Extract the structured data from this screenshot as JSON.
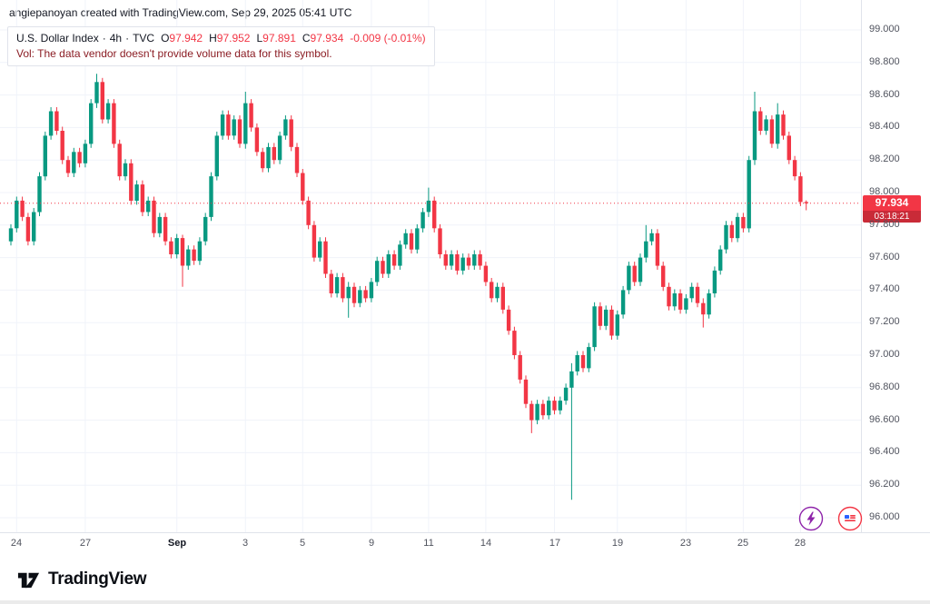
{
  "header": {
    "attribution": "angiepanoyan created with TradingView.com, Sep 29, 2025 05:41 UTC"
  },
  "legend": {
    "symbol_title": "U.S. Dollar Index",
    "separator": "·",
    "interval": "4h",
    "exchange": "TVC",
    "ohlc": {
      "o_label": "O",
      "o": "97.942",
      "h_label": "H",
      "h": "97.952",
      "l_label": "L",
      "l": "97.891",
      "c_label": "C",
      "c": "97.934",
      "change": "-0.009 (-0.01%)"
    },
    "vol_label": "Vol:",
    "vol_message": "The data vendor doesn't provide volume data for this symbol."
  },
  "price_badge": {
    "price": "97.934",
    "countdown": "03:18:21"
  },
  "footer": {
    "logo_text": "TradingView"
  },
  "chart_data": {
    "type": "candlestick",
    "title": "U.S. Dollar Index",
    "interval": "4h",
    "exchange": "TVC",
    "up_color": "#089981",
    "down_color": "#f23645",
    "grid_color": "#f0f3fa",
    "price_range": [
      96.0,
      99.0
    ],
    "y_ticks": [
      "99.000",
      "98.800",
      "98.600",
      "98.400",
      "98.200",
      "98.000",
      "97.800",
      "97.600",
      "97.400",
      "97.200",
      "97.000",
      "96.800",
      "96.600",
      "96.400",
      "96.200",
      "96.000"
    ],
    "time_labels": [
      {
        "text": "24",
        "index": 1
      },
      {
        "text": "27",
        "index": 13
      },
      {
        "text": "Sep",
        "index": 29,
        "major": true
      },
      {
        "text": "3",
        "index": 41
      },
      {
        "text": "5",
        "index": 51
      },
      {
        "text": "9",
        "index": 63
      },
      {
        "text": "11",
        "index": 73
      },
      {
        "text": "14",
        "index": 83
      },
      {
        "text": "17",
        "index": 95
      },
      {
        "text": "19",
        "index": 106
      },
      {
        "text": "23",
        "index": 118
      },
      {
        "text": "25",
        "index": 128
      },
      {
        "text": "28",
        "index": 138
      }
    ],
    "first_open": 97.7,
    "closes": [
      97.78,
      97.95,
      97.85,
      97.7,
      97.88,
      98.1,
      98.35,
      98.5,
      98.38,
      98.2,
      98.12,
      98.25,
      98.18,
      98.3,
      98.55,
      98.68,
      98.45,
      98.55,
      98.3,
      98.1,
      98.18,
      97.95,
      98.05,
      97.88,
      97.95,
      97.75,
      97.85,
      97.7,
      97.62,
      97.72,
      97.55,
      97.65,
      97.58,
      97.7,
      97.85,
      98.1,
      98.35,
      98.48,
      98.35,
      98.45,
      98.3,
      98.55,
      98.4,
      98.25,
      98.15,
      98.28,
      98.2,
      98.35,
      98.45,
      98.28,
      98.12,
      97.95,
      97.8,
      97.6,
      97.7,
      97.5,
      97.38,
      97.48,
      97.35,
      97.42,
      97.32,
      97.4,
      97.35,
      97.45,
      97.58,
      97.5,
      97.62,
      97.55,
      97.68,
      97.75,
      97.65,
      97.78,
      97.88,
      97.95,
      97.78,
      97.62,
      97.55,
      97.62,
      97.52,
      97.6,
      97.55,
      97.62,
      97.55,
      97.45,
      97.35,
      97.42,
      97.28,
      97.15,
      97.0,
      96.85,
      96.7,
      96.6,
      96.7,
      96.63,
      96.72,
      96.66,
      96.72,
      96.8,
      96.9,
      97.0,
      96.92,
      97.05,
      97.3,
      97.18,
      97.28,
      97.12,
      97.25,
      97.4,
      97.55,
      97.45,
      97.6,
      97.7,
      97.75,
      97.55,
      97.42,
      97.3,
      97.38,
      97.28,
      97.35,
      97.42,
      97.32,
      97.25,
      97.38,
      97.52,
      97.65,
      97.8,
      97.72,
      97.85,
      97.78,
      98.2,
      98.5,
      98.38,
      98.45,
      98.3,
      98.48,
      98.35,
      98.2,
      98.1,
      97.942,
      97.934
    ],
    "default_wick": 0.025,
    "wick_overrides": {
      "15": [
        0.05,
        0.03
      ],
      "30": [
        0.02,
        0.13
      ],
      "41": [
        0.07,
        0.03
      ],
      "59": [
        0.03,
        0.12
      ],
      "73": [
        0.08,
        0.03
      ],
      "91": [
        0.02,
        0.08
      ],
      "98": [
        0.05,
        0.69
      ],
      "111": [
        0.1,
        0.03
      ],
      "121": [
        0.03,
        0.08
      ],
      "130": [
        0.12,
        0.03
      ],
      "134": [
        0.07,
        0.03
      ],
      "139": [
        0.01,
        0.043
      ]
    },
    "last_candle": {
      "open": 97.942,
      "high": 97.952,
      "low": 97.891,
      "close": 97.934
    },
    "current_price": 97.934
  }
}
